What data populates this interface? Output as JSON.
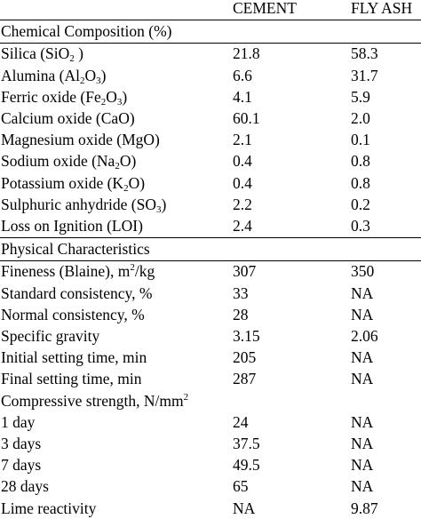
{
  "header": {
    "col1": "CEMENT",
    "col2": "FLY ASH"
  },
  "sections": [
    {
      "title": "Chemical Composition (%)",
      "rows": [
        {
          "label": [
            "Silica (SiO",
            {
              "sub": "2"
            },
            " )"
          ],
          "cement": "21.8",
          "flyash": "58.3"
        },
        {
          "label": [
            "Alumina (Al",
            {
              "sub": "2"
            },
            "O",
            {
              "sub": "3"
            },
            ")"
          ],
          "cement": "6.6",
          "flyash": "31.7"
        },
        {
          "label": [
            "Ferric oxide (Fe",
            {
              "sub": "2"
            },
            "O",
            {
              "sub": "3"
            },
            ")"
          ],
          "cement": "4.1",
          "flyash": "5.9"
        },
        {
          "label": [
            "Calcium oxide (CaO)"
          ],
          "cement": "60.1",
          "flyash": "2.0"
        },
        {
          "label": [
            "Magnesium oxide (MgO)"
          ],
          "cement": "2.1",
          "flyash": "0.1"
        },
        {
          "label": [
            "Sodium oxide (Na",
            {
              "sub": "2"
            },
            "O)"
          ],
          "cement": "0.4",
          "flyash": "0.8"
        },
        {
          "label": [
            "Potassium oxide (K",
            {
              "sub": "2"
            },
            "O)"
          ],
          "cement": "0.4",
          "flyash": "0.8"
        },
        {
          "label": [
            "Sulphuric anhydride (SO",
            {
              "sub": "3"
            },
            ")"
          ],
          "cement": "2.2",
          "flyash": "0.2"
        },
        {
          "label": [
            "Loss on Ignition (LOI)"
          ],
          "cement": "2.4",
          "flyash": "0.3"
        }
      ]
    },
    {
      "title": "Physical Characteristics",
      "rows": [
        {
          "label": [
            "Fineness (Blaine), m",
            {
              "sup": "2"
            },
            "/kg"
          ],
          "cement": "307",
          "flyash": "350"
        },
        {
          "label": [
            "Standard consistency, %"
          ],
          "cement": "33",
          "flyash": "NA"
        },
        {
          "label": [
            "Normal consistency, %"
          ],
          "cement": "28",
          "flyash": "NA"
        },
        {
          "label": [
            "Specific gravity"
          ],
          "cement": "3.15",
          "flyash": "2.06"
        },
        {
          "label": [
            "Initial setting time, min"
          ],
          "cement": "205",
          "flyash": "NA"
        },
        {
          "label": [
            "Final setting time, min"
          ],
          "cement": "287",
          "flyash": "NA"
        },
        {
          "label": [
            "Compressive strength, N/mm",
            {
              "sup": "2"
            }
          ],
          "cement": "",
          "flyash": ""
        },
        {
          "label": [
            "1 day"
          ],
          "cement": "24",
          "flyash": "NA"
        },
        {
          "label": [
            "3 days"
          ],
          "cement": "37.5",
          "flyash": "NA"
        },
        {
          "label": [
            "7 days"
          ],
          "cement": "49.5",
          "flyash": "NA"
        },
        {
          "label": [
            "28 days"
          ],
          "cement": "65",
          "flyash": "NA"
        },
        {
          "label": [
            "Lime reactivity"
          ],
          "cement": "NA",
          "flyash": "9.87"
        }
      ]
    }
  ]
}
